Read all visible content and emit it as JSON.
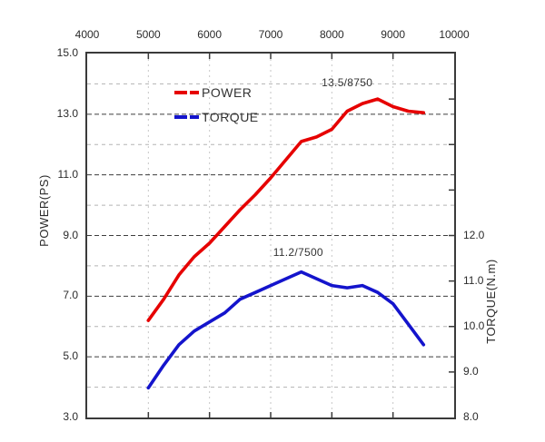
{
  "chart_data": {
    "type": "line",
    "title": "",
    "grid": "on",
    "legend_position": "top-left-inside",
    "x_axis": {
      "position": "top",
      "min": 4000,
      "max": 10000,
      "tick_step": 1000,
      "tick_labels": [
        "4000",
        "5000",
        "6000",
        "7000",
        "8000",
        "9000",
        "10000"
      ]
    },
    "y_left": {
      "label": "POWER(PS)",
      "min": 3.0,
      "max": 15.0,
      "gridline_step": 1.0,
      "tick_values": [
        15.0,
        13.0,
        11.0,
        9.0,
        7.0,
        5.0,
        3.0
      ],
      "tick_labels": [
        "15.0",
        "13.0",
        "11.0",
        "9.0",
        "7.0",
        "5.0",
        "3.0"
      ]
    },
    "y_right": {
      "label": "TORQUE(N.m)",
      "min": 8.0,
      "max": 16.0,
      "tick_step": 1.0,
      "tick_values": [
        12.0,
        11.0,
        10.0,
        9.0,
        8.0
      ],
      "tick_labels": [
        "12.0",
        "11.0",
        "10.0",
        "9.0",
        "8.0"
      ]
    },
    "series": [
      {
        "name": "POWER",
        "axis": "left",
        "color": "#e60000",
        "x": [
          5000,
          5250,
          5500,
          5750,
          6000,
          6250,
          6500,
          6750,
          7000,
          7250,
          7500,
          7750,
          8000,
          8250,
          8500,
          8750,
          9000,
          9250,
          9500
        ],
        "values": [
          6.2,
          6.9,
          7.7,
          8.3,
          8.75,
          9.3,
          9.85,
          10.35,
          10.9,
          11.5,
          12.1,
          12.25,
          12.5,
          13.1,
          13.35,
          13.5,
          13.25,
          13.1,
          13.05
        ],
        "peak": "13.5 PS at 8750 rpm"
      },
      {
        "name": "TORQUE",
        "axis": "right",
        "color": "#1414cc",
        "x": [
          5000,
          5250,
          5500,
          5750,
          6000,
          6250,
          6500,
          6750,
          7000,
          7250,
          7500,
          7750,
          8000,
          8250,
          8500,
          8750,
          9000,
          9250,
          9500
        ],
        "values": [
          8.65,
          9.15,
          9.6,
          9.9,
          10.1,
          10.3,
          10.6,
          10.75,
          10.9,
          11.05,
          11.2,
          11.05,
          10.9,
          10.85,
          10.9,
          10.75,
          10.5,
          10.05,
          9.6
        ],
        "peak": "11.2 N.m at 7500 rpm"
      }
    ],
    "annotations": [
      {
        "text": "13.5/8750",
        "rpm": 8250,
        "y_ps": 14.05
      },
      {
        "text": "11.2/7500",
        "rpm": 7450,
        "y_ps": 8.45
      }
    ],
    "legend": {
      "items": [
        {
          "label": "POWER",
          "color": "#e60000"
        },
        {
          "label": "TORQUE",
          "color": "#1414cc"
        }
      ]
    },
    "style_colors": {
      "frame": "#3a3a3a",
      "grid_major": "#3d3d3d",
      "grid_minor": "#b3b3b3",
      "grid_vertical": "#c6c6c6",
      "tick": "#3a3a3a",
      "text": "#2b2b2b"
    }
  }
}
